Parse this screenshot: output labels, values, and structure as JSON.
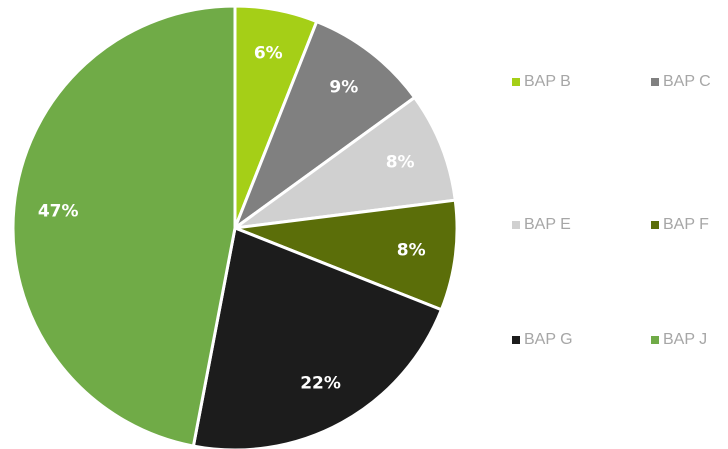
{
  "chart_data": {
    "type": "pie",
    "categories": [
      "BAP B",
      "BAP C",
      "BAP E",
      "BAP F",
      "BAP G",
      "BAP J"
    ],
    "values": [
      6,
      9,
      8,
      8,
      22,
      47
    ],
    "value_labels": [
      "6%",
      "9%",
      "8%",
      "8%",
      "22%",
      "47%"
    ],
    "colors": [
      "#a5cf17",
      "#808080",
      "#d0d0d0",
      "#5b6e09",
      "#1c1c1c",
      "#70ab47"
    ],
    "legend": "right"
  }
}
